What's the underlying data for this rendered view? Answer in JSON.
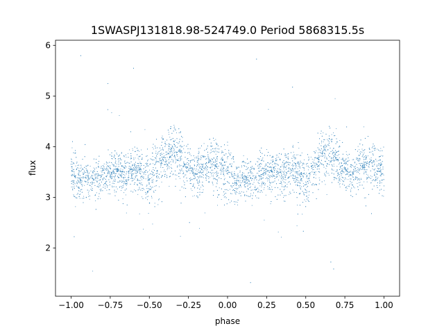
{
  "chart_data": {
    "type": "scatter",
    "title": "1SWASPJ131818.98-524749.0 Period 5868315.5s",
    "xlabel": "phase",
    "ylabel": "flux",
    "xlim": [
      -1.1,
      1.1
    ],
    "ylim": [
      1.05,
      6.1
    ],
    "x_ticks": [
      -1.0,
      -0.75,
      -0.5,
      -0.25,
      0.0,
      0.25,
      0.5,
      0.75,
      1.0
    ],
    "x_tick_labels": [
      "−1.00",
      "−0.75",
      "−0.50",
      "−0.25",
      "0.00",
      "0.25",
      "0.50",
      "0.75",
      "1.00"
    ],
    "y_ticks": [
      2,
      3,
      4,
      5,
      6
    ],
    "y_tick_labels": [
      "2",
      "3",
      "4",
      "5",
      "6"
    ],
    "grid": false,
    "legend": "none",
    "point_color": "#1f77b4",
    "series": [
      {
        "phase_range": [
          -1.0,
          1.0
        ],
        "profile": {
          "phase": [
            0.0,
            0.05,
            0.1,
            0.15,
            0.2,
            0.25,
            0.3,
            0.35,
            0.4,
            0.45,
            0.5,
            0.55,
            0.6,
            0.65,
            0.7,
            0.75,
            0.8,
            0.85,
            0.9,
            0.95,
            1.0
          ],
          "center_flux": [
            3.55,
            3.3,
            3.4,
            3.35,
            3.45,
            3.5,
            3.55,
            3.45,
            3.55,
            3.5,
            3.35,
            3.6,
            3.8,
            3.9,
            3.75,
            3.55,
            3.45,
            3.6,
            3.7,
            3.55,
            3.55
          ],
          "upper_flux": [
            4.3,
            3.85,
            3.9,
            3.9,
            4.0,
            4.05,
            4.05,
            4.0,
            4.1,
            4.1,
            4.0,
            4.25,
            4.45,
            4.6,
            4.4,
            4.1,
            4.05,
            4.2,
            4.35,
            4.1,
            4.3
          ],
          "lower_flux": [
            2.8,
            2.5,
            2.6,
            2.7,
            2.8,
            2.85,
            2.7,
            2.6,
            2.9,
            2.1,
            2.3,
            2.4,
            2.8,
            3.0,
            2.9,
            2.8,
            2.9,
            3.0,
            2.6,
            2.4,
            2.8
          ]
        },
        "outlier_flux_range": [
          1.25,
          5.85
        ]
      }
    ]
  }
}
